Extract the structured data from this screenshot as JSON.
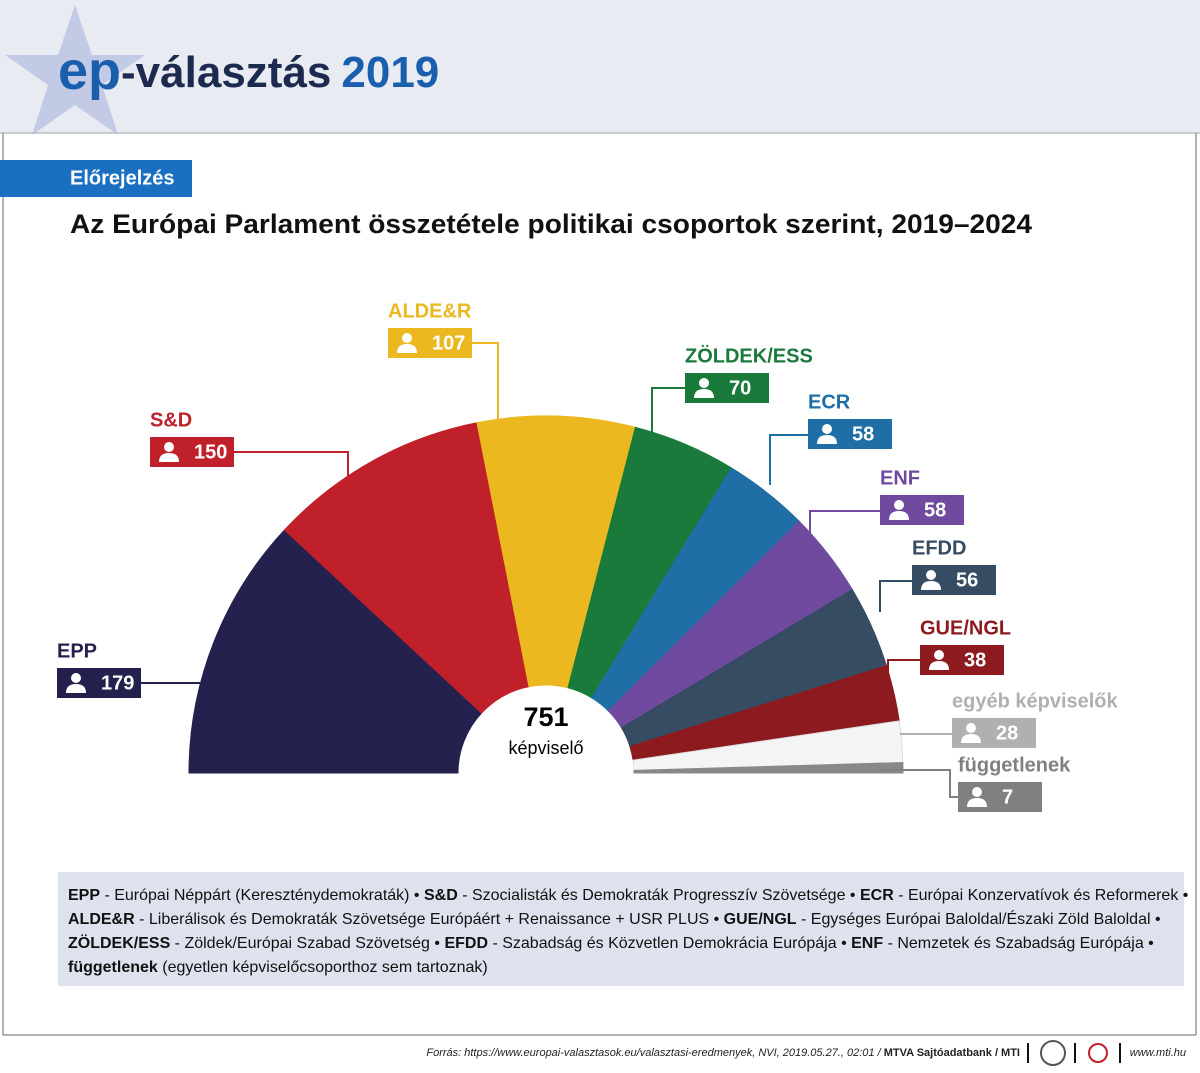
{
  "header": {
    "logo": [
      "ep",
      "-választás",
      "2019"
    ]
  },
  "tag": "Előrejelzés",
  "chart_data": {
    "type": "half-pie",
    "title": "Az Európai Parlament összetétele politikai csoportok szerint, 2019–2024",
    "categories": [
      "EPP",
      "S&D",
      "ALDE&R",
      "ZÖLDEK/ESS",
      "ECR",
      "ENF",
      "EFDD",
      "GUE/NGL",
      "egyéb képviselők",
      "függetlenek"
    ],
    "values": [
      179,
      150,
      107,
      70,
      58,
      58,
      56,
      38,
      28,
      7
    ],
    "colors": [
      "#24214f",
      "#c0202a",
      "#ebb81f",
      "#1a7a3c",
      "#1f6fa6",
      "#6f4a9f",
      "#354c63",
      "#8c1a1f",
      "#f4f4f4",
      "#888888"
    ],
    "label_colors": [
      "#24214f",
      "#c0202a",
      "#ebb81f",
      "#1a7a3c",
      "#1f6fa6",
      "#6f4a9f",
      "#354c63",
      "#8c1a1f",
      "#b0b0b0",
      "#808080"
    ],
    "center_value": 751,
    "center_label": "képviselő"
  },
  "legend_lines": [
    [
      {
        "text": "EPP",
        "bold": true
      },
      {
        "text": " - Európai Néppárt (Kereszténydemokraták) • ",
        "bold": false
      },
      {
        "text": "S&D",
        "bold": true
      },
      {
        "text": " - Szocialisták és Demokraták Progresszív Szövetsége • ",
        "bold": false
      },
      {
        "text": "ECR",
        "bold": true
      },
      {
        "text": " - Európai Konzervatívok és Reformerek •",
        "bold": false
      }
    ],
    [
      {
        "text": "ALDE&R",
        "bold": true
      },
      {
        "text": " - Liberálisok és Demokraták Szövetsége Európáért + Renaissance + USR PLUS • ",
        "bold": false
      },
      {
        "text": "GUE/NGL",
        "bold": true
      },
      {
        "text": " - Egységes Európai Baloldal/Északi Zöld Baloldal •",
        "bold": false
      }
    ],
    [
      {
        "text": "ZÖLDEK/ESS",
        "bold": true
      },
      {
        "text": " - Zöldek/Európai Szabad Szövetség • ",
        "bold": false
      },
      {
        "text": "EFDD",
        "bold": true
      },
      {
        "text": " - Szabadság és Közvetlen Demokrácia Európája • ",
        "bold": false
      },
      {
        "text": "ENF",
        "bold": true
      },
      {
        "text": " - Nemzetek és Szabadság Európája •",
        "bold": false
      }
    ],
    [
      {
        "text": "függetlenek",
        "bold": true
      },
      {
        "text": " (egyetlen képviselőcsoporthoz sem tartoznak)",
        "bold": false
      }
    ]
  ],
  "source": {
    "text": "Forrás: https://www.europai-valasztasok.eu/valasztasi-eredmenyek, NVI, 2019.05.27., 02:01 / ",
    "credit": "MTVA Sajtóadatbank / MTI",
    "url": "www.mti.hu"
  }
}
